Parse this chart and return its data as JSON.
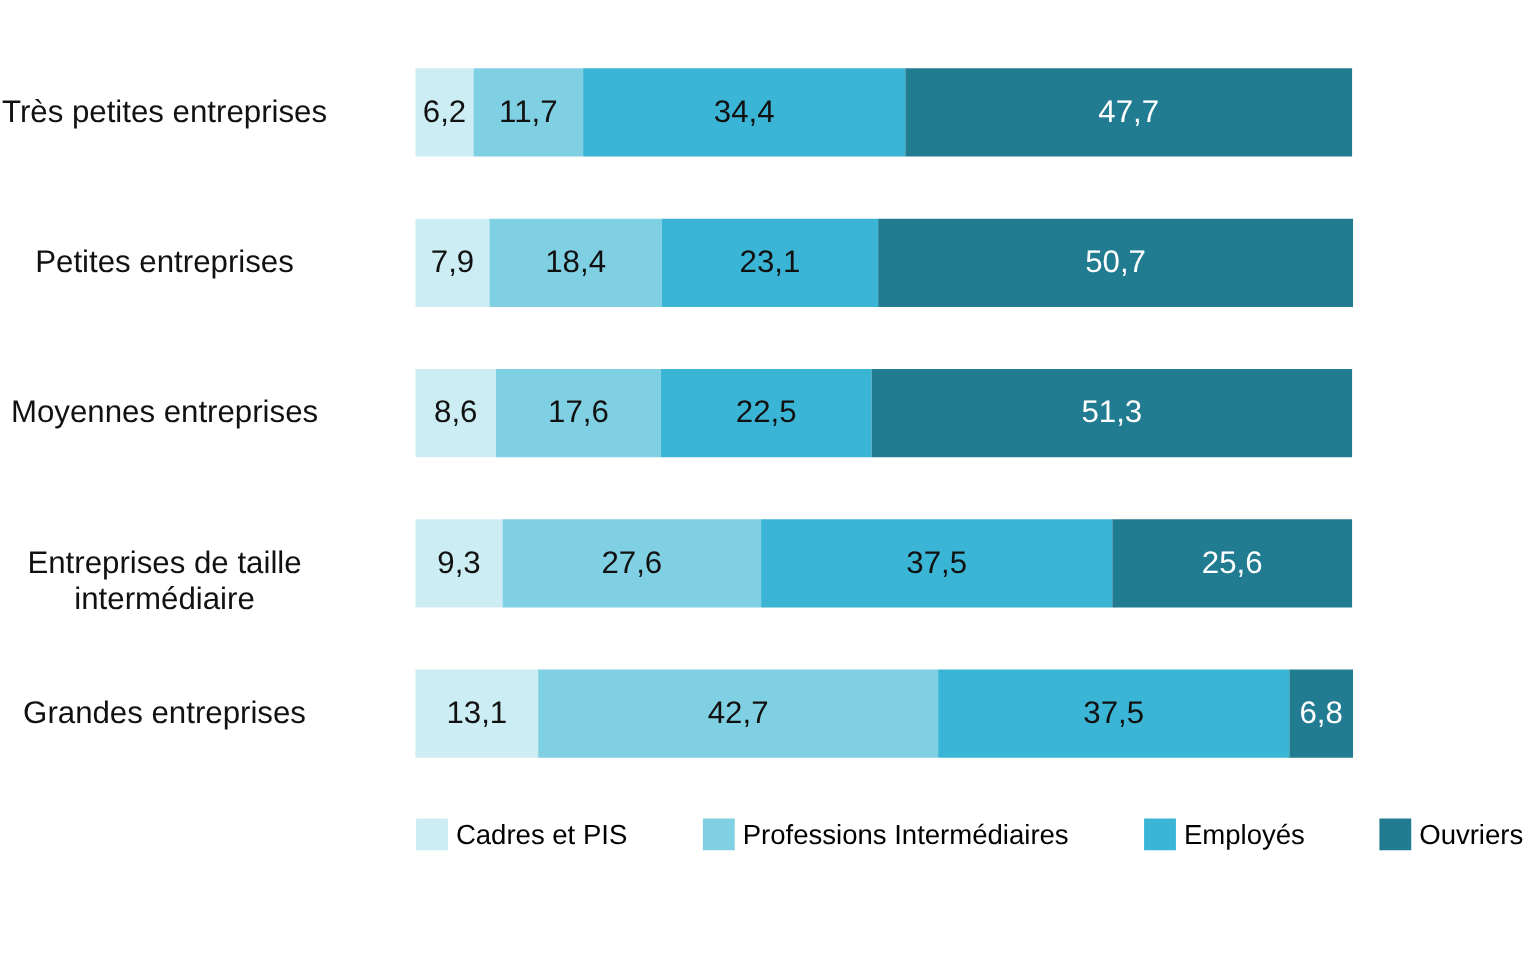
{
  "chart_data": {
    "type": "bar",
    "orientation": "horizontal",
    "stacked": true,
    "tick_labels": "y",
    "grid": false,
    "legend": "bottom",
    "categories": [
      "Très petites entreprises",
      "Petites entreprises",
      "Moyennes entreprises",
      "Entreprises de taille intermédiaire",
      "Grandes entreprises"
    ],
    "series": [
      {
        "name": "Cadres et PIS",
        "color": "#cdedf4",
        "values": [
          6.2,
          7.9,
          8.6,
          9.3,
          13.1
        ],
        "value_labels": [
          "6,2",
          "7,9",
          "8,6",
          "9,3",
          "13,1"
        ]
      },
      {
        "name": "Professions Intermédiaires",
        "color": "#80d0e3",
        "values": [
          11.7,
          18.4,
          17.6,
          27.6,
          42.7
        ],
        "value_labels": [
          "11,7",
          "18,4",
          "17,6",
          "27,6",
          "42,7"
        ]
      },
      {
        "name": "Employés",
        "color": "#3ab5d5",
        "values": [
          34.4,
          23.1,
          22.5,
          37.5,
          37.5
        ],
        "value_labels": [
          "34,4",
          "23,1",
          "22,5",
          "37,5",
          "37,5"
        ]
      },
      {
        "name": "Ouvriers",
        "color": "#217c91",
        "values": [
          47.7,
          50.7,
          51.3,
          25.6,
          6.8
        ],
        "value_labels": [
          "47,7",
          "50,7",
          "51,3",
          "25,6",
          "6,8"
        ]
      }
    ]
  }
}
